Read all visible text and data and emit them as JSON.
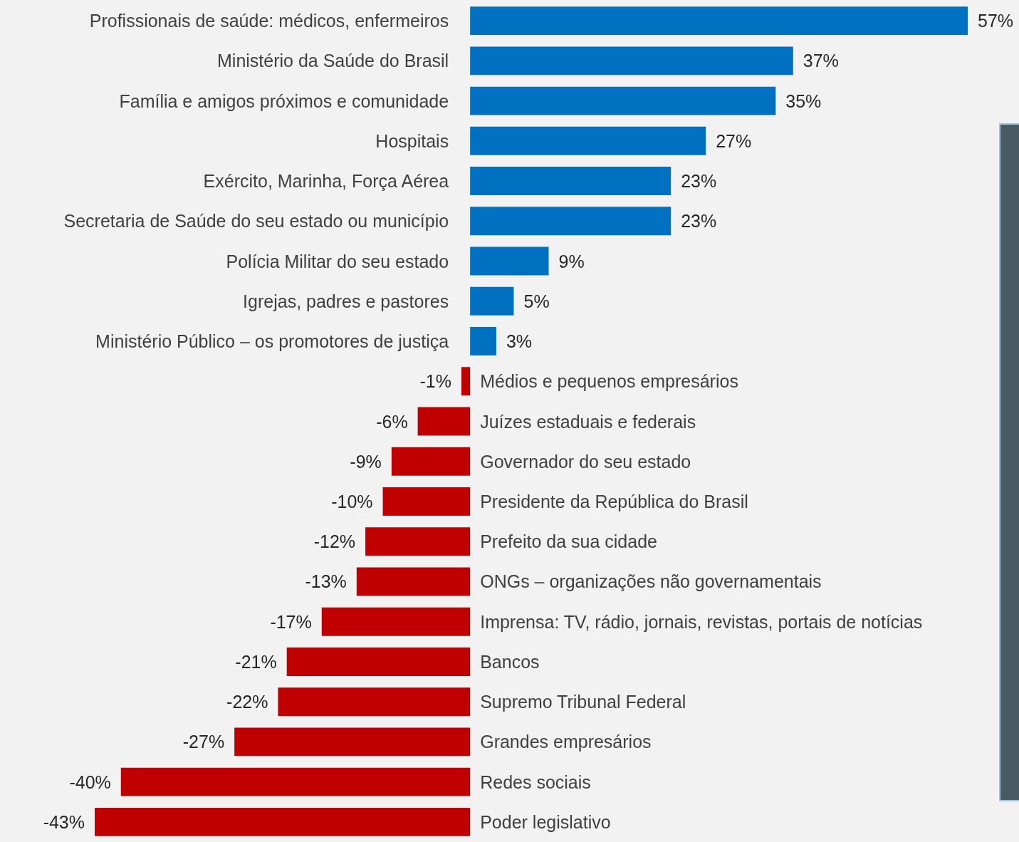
{
  "chart_data": {
    "type": "bar",
    "orientation": "horizontal",
    "categories": [
      "Profissionais de saúde: médicos, enfermeiros",
      "Ministério da Saúde do Brasil",
      "Família e amigos próximos e comunidade",
      "Hospitais",
      "Exército, Marinha, Força Aérea",
      "Secretaria de Saúde do seu estado ou município",
      "Polícia Militar do seu estado",
      "Igrejas, padres e pastores",
      "Ministério Público – os promotores de justiça",
      "Médios e pequenos empresários",
      "Juízes estaduais e federais",
      "Governador do seu estado",
      "Presidente da República do Brasil",
      "Prefeito da sua cidade",
      "ONGs – organizações não governamentais",
      "Imprensa: TV, rádio, jornais, revistas, portais de notícias",
      "Bancos",
      "Supremo Tribunal Federal",
      "Grandes empresários",
      "Redes sociais",
      "Poder legislativo"
    ],
    "values": [
      57,
      37,
      35,
      27,
      23,
      23,
      9,
      5,
      3,
      -1,
      -6,
      -9,
      -10,
      -12,
      -13,
      -17,
      -21,
      -22,
      -27,
      -40,
      -43
    ],
    "value_labels": [
      "57%",
      "37%",
      "35%",
      "27%",
      "23%",
      "23%",
      "9%",
      "5%",
      "3%",
      "-1%",
      "-6%",
      "-9%",
      "-10%",
      "-12%",
      "-13%",
      "-17%",
      "-21%",
      "-22%",
      "-27%",
      "-40%",
      "-43%"
    ],
    "colors": [
      "#0070c0",
      "#0070c0",
      "#0070c0",
      "#0070c0",
      "#0070c0",
      "#0070c0",
      "#0070c0",
      "#0070c0",
      "#0070c0",
      "#c00000",
      "#c00000",
      "#c00000",
      "#c00000",
      "#c00000",
      "#c00000",
      "#c00000",
      "#c00000",
      "#c00000",
      "#c00000",
      "#c00000",
      "#c00000"
    ]
  }
}
